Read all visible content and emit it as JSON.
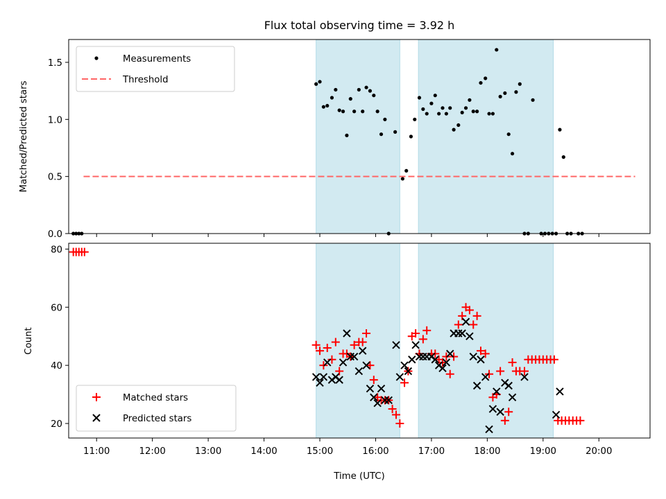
{
  "chart_data": {
    "type": "scatter",
    "title": "Flux total observing time = 3.92 h",
    "xlabel": "Time (UTC)",
    "x_ticks": [
      "11:00",
      "12:00",
      "13:00",
      "14:00",
      "15:00",
      "16:00",
      "17:00",
      "18:00",
      "19:00",
      "20:00"
    ],
    "xlim": [
      "10:30",
      "20:55"
    ],
    "shaded_intervals": [
      [
        "14:56",
        "16:26"
      ],
      [
        "16:46",
        "19:11"
      ]
    ],
    "shade_color": "#add8e6",
    "panels": [
      {
        "ylabel": "Matched/Predicted stars",
        "ylim": [
          0,
          1.7
        ],
        "y_ticks": [
          0.0,
          0.5,
          1.0,
          1.5
        ],
        "legend_position": "upper-left",
        "series": [
          {
            "name": "Measurements",
            "marker": "dot",
            "color": "#000000",
            "points": [
              [
                "10:35",
                0
              ],
              [
                "10:38",
                0
              ],
              [
                "10:41",
                0
              ],
              [
                "10:44",
                0
              ],
              [
                "14:56",
                1.31
              ],
              [
                "15:00",
                1.33
              ],
              [
                "15:04",
                1.11
              ],
              [
                "15:08",
                1.12
              ],
              [
                "15:13",
                1.19
              ],
              [
                "15:17",
                1.26
              ],
              [
                "15:21",
                1.08
              ],
              [
                "15:25",
                1.07
              ],
              [
                "15:29",
                0.86
              ],
              [
                "15:33",
                1.18
              ],
              [
                "15:37",
                1.07
              ],
              [
                "15:42",
                1.26
              ],
              [
                "15:46",
                1.07
              ],
              [
                "15:50",
                1.28
              ],
              [
                "15:54",
                1.25
              ],
              [
                "15:58",
                1.21
              ],
              [
                "16:02",
                1.07
              ],
              [
                "16:06",
                0.87
              ],
              [
                "16:10",
                1.0
              ],
              [
                "16:14",
                0.0
              ],
              [
                "16:21",
                0.89
              ],
              [
                "16:29",
                0.48
              ],
              [
                "16:33",
                0.55
              ],
              [
                "16:38",
                0.85
              ],
              [
                "16:42",
                1.0
              ],
              [
                "16:47",
                1.19
              ],
              [
                "16:51",
                1.09
              ],
              [
                "16:55",
                1.05
              ],
              [
                "17:00",
                1.14
              ],
              [
                "17:04",
                1.21
              ],
              [
                "17:08",
                1.05
              ],
              [
                "17:12",
                1.1
              ],
              [
                "17:16",
                1.05
              ],
              [
                "17:20",
                1.1
              ],
              [
                "17:24",
                0.91
              ],
              [
                "17:29",
                0.95
              ],
              [
                "17:33",
                1.06
              ],
              [
                "17:37",
                1.1
              ],
              [
                "17:41",
                1.17
              ],
              [
                "17:45",
                1.07
              ],
              [
                "17:49",
                1.07
              ],
              [
                "17:53",
                1.32
              ],
              [
                "17:58",
                1.36
              ],
              [
                "18:02",
                1.05
              ],
              [
                "18:06",
                1.05
              ],
              [
                "18:10",
                1.61
              ],
              [
                "18:14",
                1.2
              ],
              [
                "18:19",
                1.23
              ],
              [
                "18:23",
                0.87
              ],
              [
                "18:27",
                0.7
              ],
              [
                "18:31",
                1.24
              ],
              [
                "18:35",
                1.31
              ],
              [
                "18:40",
                0
              ],
              [
                "18:44",
                0
              ],
              [
                "18:49",
                1.17
              ],
              [
                "18:58",
                0
              ],
              [
                "19:02",
                0
              ],
              [
                "19:06",
                0
              ],
              [
                "19:10",
                0
              ],
              [
                "19:14",
                0
              ],
              [
                "19:18",
                0.91
              ],
              [
                "19:22",
                0.67
              ],
              [
                "19:26",
                0
              ],
              [
                "19:30",
                0
              ],
              [
                "19:38",
                0
              ],
              [
                "19:42",
                0
              ]
            ]
          },
          {
            "name": "Threshold",
            "marker": "dashed-line",
            "color": "#ff6666",
            "points": [
              [
                "10:46",
                0.5
              ],
              [
                "20:39",
                0.5
              ]
            ]
          }
        ]
      },
      {
        "ylabel": "Count",
        "ylim": [
          15,
          82
        ],
        "y_ticks": [
          20,
          40,
          60,
          80
        ],
        "legend_position": "lower-left",
        "series": [
          {
            "name": "Matched stars",
            "marker": "plus",
            "color": "#ff0000",
            "points": [
              [
                "10:35",
                79
              ],
              [
                "10:38",
                79
              ],
              [
                "10:41",
                79
              ],
              [
                "10:44",
                79
              ],
              [
                "10:47",
                79
              ],
              [
                "14:56",
                47
              ],
              [
                "15:00",
                45
              ],
              [
                "15:04",
                40
              ],
              [
                "15:08",
                46
              ],
              [
                "15:13",
                42
              ],
              [
                "15:17",
                48
              ],
              [
                "15:21",
                38
              ],
              [
                "15:25",
                44
              ],
              [
                "15:29",
                44
              ],
              [
                "15:33",
                43
              ],
              [
                "15:37",
                47
              ],
              [
                "15:42",
                48
              ],
              [
                "15:46",
                48
              ],
              [
                "15:50",
                51
              ],
              [
                "15:54",
                40
              ],
              [
                "15:58",
                35
              ],
              [
                "16:02",
                29
              ],
              [
                "16:06",
                28
              ],
              [
                "16:10",
                28
              ],
              [
                "16:14",
                28
              ],
              [
                "16:18",
                25
              ],
              [
                "16:22",
                23
              ],
              [
                "16:26",
                20
              ],
              [
                "16:31",
                34
              ],
              [
                "16:35",
                38
              ],
              [
                "16:39",
                50
              ],
              [
                "16:43",
                51
              ],
              [
                "16:47",
                44
              ],
              [
                "16:51",
                49
              ],
              [
                "16:55",
                52
              ],
              [
                "17:00",
                44
              ],
              [
                "17:04",
                44
              ],
              [
                "17:08",
                42
              ],
              [
                "17:12",
                41
              ],
              [
                "17:16",
                43
              ],
              [
                "17:20",
                37
              ],
              [
                "17:24",
                43
              ],
              [
                "17:29",
                54
              ],
              [
                "17:33",
                57
              ],
              [
                "17:37",
                60
              ],
              [
                "17:41",
                59
              ],
              [
                "17:45",
                54
              ],
              [
                "17:49",
                57
              ],
              [
                "17:53",
                45
              ],
              [
                "17:58",
                44
              ],
              [
                "18:02",
                37
              ],
              [
                "18:06",
                29
              ],
              [
                "18:10",
                30
              ],
              [
                "18:14",
                38
              ],
              [
                "18:19",
                21
              ],
              [
                "18:23",
                24
              ],
              [
                "18:27",
                41
              ],
              [
                "18:31",
                38
              ],
              [
                "18:35",
                38
              ],
              [
                "18:40",
                38
              ],
              [
                "18:44",
                42
              ],
              [
                "18:48",
                42
              ],
              [
                "18:52",
                42
              ],
              [
                "18:56",
                42
              ],
              [
                "19:00",
                42
              ],
              [
                "19:04",
                42
              ],
              [
                "19:08",
                42
              ],
              [
                "19:12",
                42
              ],
              [
                "19:16",
                21
              ],
              [
                "19:20",
                21
              ],
              [
                "19:24",
                21
              ],
              [
                "19:28",
                21
              ],
              [
                "19:32",
                21
              ],
              [
                "19:36",
                21
              ],
              [
                "19:40",
                21
              ]
            ]
          },
          {
            "name": "Predicted stars",
            "marker": "x",
            "color": "#000000",
            "points": [
              [
                "14:56",
                36
              ],
              [
                "15:00",
                34
              ],
              [
                "15:04",
                36
              ],
              [
                "15:08",
                41
              ],
              [
                "15:13",
                35
              ],
              [
                "15:17",
                36
              ],
              [
                "15:21",
                35
              ],
              [
                "15:25",
                41
              ],
              [
                "15:29",
                51
              ],
              [
                "15:33",
                43
              ],
              [
                "15:37",
                43
              ],
              [
                "15:42",
                38
              ],
              [
                "15:46",
                45
              ],
              [
                "15:50",
                40
              ],
              [
                "15:54",
                32
              ],
              [
                "15:58",
                29
              ],
              [
                "16:02",
                27
              ],
              [
                "16:06",
                32
              ],
              [
                "16:10",
                28
              ],
              [
                "16:14",
                28
              ],
              [
                "16:22",
                47
              ],
              [
                "16:26",
                36
              ],
              [
                "16:31",
                40
              ],
              [
                "16:35",
                38
              ],
              [
                "16:39",
                42
              ],
              [
                "16:43",
                47
              ],
              [
                "16:47",
                43
              ],
              [
                "16:51",
                43
              ],
              [
                "16:55",
                43
              ],
              [
                "17:00",
                43
              ],
              [
                "17:04",
                42
              ],
              [
                "17:08",
                40
              ],
              [
                "17:12",
                39
              ],
              [
                "17:16",
                41
              ],
              [
                "17:20",
                44
              ],
              [
                "17:24",
                51
              ],
              [
                "17:29",
                51
              ],
              [
                "17:33",
                51
              ],
              [
                "17:37",
                55
              ],
              [
                "17:41",
                50
              ],
              [
                "17:45",
                43
              ],
              [
                "17:49",
                33
              ],
              [
                "17:53",
                42
              ],
              [
                "17:58",
                36
              ],
              [
                "18:02",
                18
              ],
              [
                "18:06",
                25
              ],
              [
                "18:10",
                31
              ],
              [
                "18:14",
                24
              ],
              [
                "18:19",
                34
              ],
              [
                "18:23",
                33
              ],
              [
                "18:27",
                29
              ],
              [
                "18:40",
                36
              ],
              [
                "19:14",
                23
              ],
              [
                "19:18",
                31
              ]
            ]
          }
        ]
      }
    ]
  }
}
